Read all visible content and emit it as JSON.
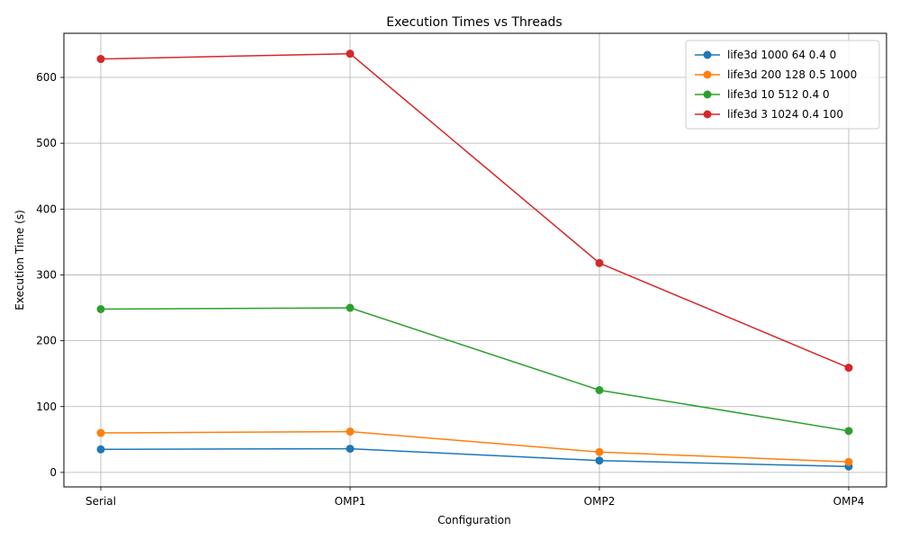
{
  "chart_data": {
    "type": "line",
    "title": "Execution Times vs Threads",
    "xlabel": "Configuration",
    "ylabel": "Execution Time (s)",
    "categories": [
      "Serial",
      "OMP1",
      "OMP2",
      "OMP4"
    ],
    "ylim": [
      -22,
      667
    ],
    "yticks": [
      0,
      100,
      200,
      300,
      400,
      500,
      600
    ],
    "grid": true,
    "legend_position": "top-right",
    "series": [
      {
        "name": "life3d 1000 64 0.4 0",
        "color": "#1f77b4",
        "values": [
          35,
          36,
          18,
          9
        ]
      },
      {
        "name": "life3d 200 128 0.5 1000",
        "color": "#ff7f0e",
        "values": [
          60,
          62,
          31,
          16
        ]
      },
      {
        "name": "life3d 10 512 0.4 0",
        "color": "#2ca02c",
        "values": [
          248,
          250,
          125,
          63
        ]
      },
      {
        "name": "life3d 3 1024 0.4 100",
        "color": "#d62728",
        "values": [
          628,
          636,
          318,
          159
        ]
      }
    ]
  }
}
